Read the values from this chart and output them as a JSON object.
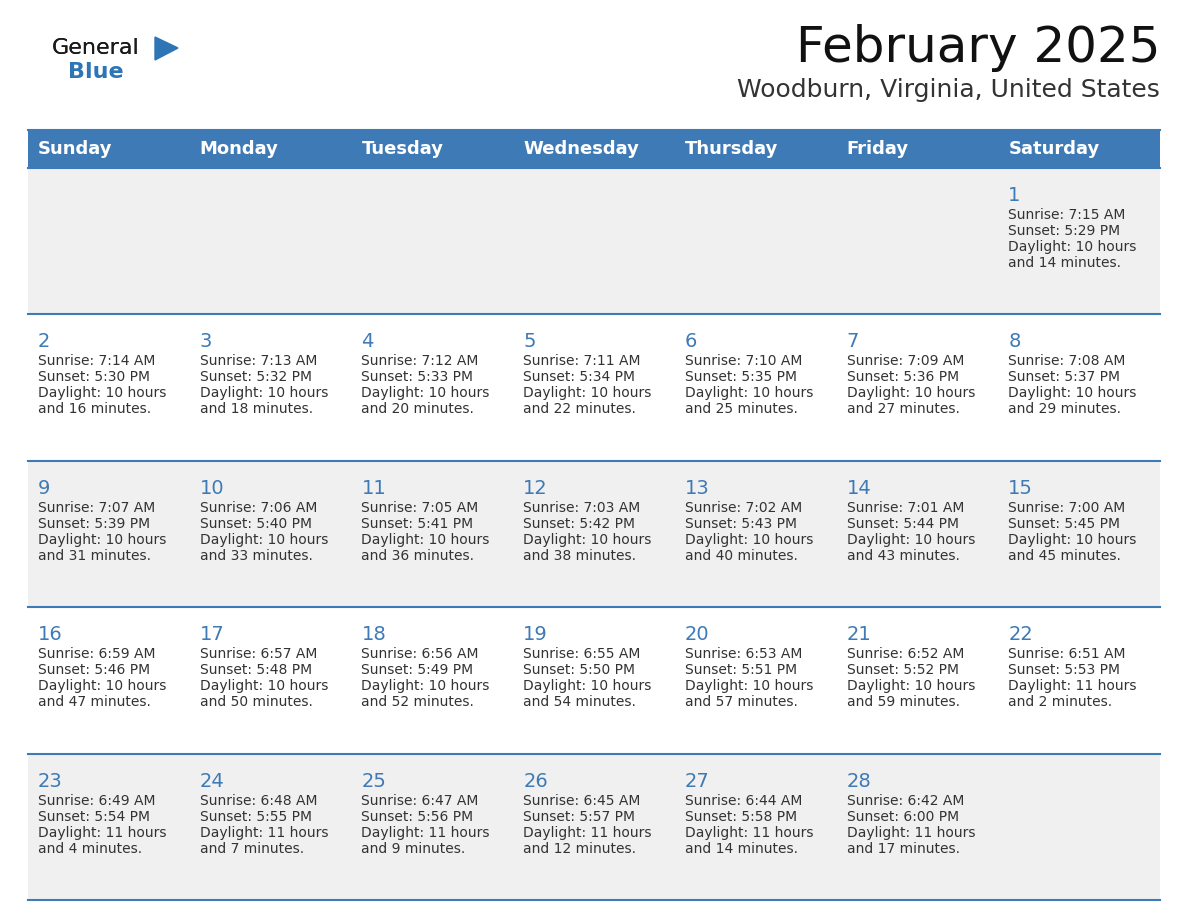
{
  "title": "February 2025",
  "subtitle": "Woodburn, Virginia, United States",
  "header_bg_color": "#3E7AB5",
  "header_text_color": "#FFFFFF",
  "cell_bg_color_odd": "#F0F0F0",
  "cell_bg_color_even": "#FFFFFF",
  "day_headers": [
    "Sunday",
    "Monday",
    "Tuesday",
    "Wednesday",
    "Thursday",
    "Friday",
    "Saturday"
  ],
  "days": [
    {
      "day": 1,
      "col": 6,
      "row": 0,
      "sunrise": "7:15 AM",
      "sunset": "5:29 PM",
      "daylight_hours": 10,
      "daylight_minutes": 14
    },
    {
      "day": 2,
      "col": 0,
      "row": 1,
      "sunrise": "7:14 AM",
      "sunset": "5:30 PM",
      "daylight_hours": 10,
      "daylight_minutes": 16
    },
    {
      "day": 3,
      "col": 1,
      "row": 1,
      "sunrise": "7:13 AM",
      "sunset": "5:32 PM",
      "daylight_hours": 10,
      "daylight_minutes": 18
    },
    {
      "day": 4,
      "col": 2,
      "row": 1,
      "sunrise": "7:12 AM",
      "sunset": "5:33 PM",
      "daylight_hours": 10,
      "daylight_minutes": 20
    },
    {
      "day": 5,
      "col": 3,
      "row": 1,
      "sunrise": "7:11 AM",
      "sunset": "5:34 PM",
      "daylight_hours": 10,
      "daylight_minutes": 22
    },
    {
      "day": 6,
      "col": 4,
      "row": 1,
      "sunrise": "7:10 AM",
      "sunset": "5:35 PM",
      "daylight_hours": 10,
      "daylight_minutes": 25
    },
    {
      "day": 7,
      "col": 5,
      "row": 1,
      "sunrise": "7:09 AM",
      "sunset": "5:36 PM",
      "daylight_hours": 10,
      "daylight_minutes": 27
    },
    {
      "day": 8,
      "col": 6,
      "row": 1,
      "sunrise": "7:08 AM",
      "sunset": "5:37 PM",
      "daylight_hours": 10,
      "daylight_minutes": 29
    },
    {
      "day": 9,
      "col": 0,
      "row": 2,
      "sunrise": "7:07 AM",
      "sunset": "5:39 PM",
      "daylight_hours": 10,
      "daylight_minutes": 31
    },
    {
      "day": 10,
      "col": 1,
      "row": 2,
      "sunrise": "7:06 AM",
      "sunset": "5:40 PM",
      "daylight_hours": 10,
      "daylight_minutes": 33
    },
    {
      "day": 11,
      "col": 2,
      "row": 2,
      "sunrise": "7:05 AM",
      "sunset": "5:41 PM",
      "daylight_hours": 10,
      "daylight_minutes": 36
    },
    {
      "day": 12,
      "col": 3,
      "row": 2,
      "sunrise": "7:03 AM",
      "sunset": "5:42 PM",
      "daylight_hours": 10,
      "daylight_minutes": 38
    },
    {
      "day": 13,
      "col": 4,
      "row": 2,
      "sunrise": "7:02 AM",
      "sunset": "5:43 PM",
      "daylight_hours": 10,
      "daylight_minutes": 40
    },
    {
      "day": 14,
      "col": 5,
      "row": 2,
      "sunrise": "7:01 AM",
      "sunset": "5:44 PM",
      "daylight_hours": 10,
      "daylight_minutes": 43
    },
    {
      "day": 15,
      "col": 6,
      "row": 2,
      "sunrise": "7:00 AM",
      "sunset": "5:45 PM",
      "daylight_hours": 10,
      "daylight_minutes": 45
    },
    {
      "day": 16,
      "col": 0,
      "row": 3,
      "sunrise": "6:59 AM",
      "sunset": "5:46 PM",
      "daylight_hours": 10,
      "daylight_minutes": 47
    },
    {
      "day": 17,
      "col": 1,
      "row": 3,
      "sunrise": "6:57 AM",
      "sunset": "5:48 PM",
      "daylight_hours": 10,
      "daylight_minutes": 50
    },
    {
      "day": 18,
      "col": 2,
      "row": 3,
      "sunrise": "6:56 AM",
      "sunset": "5:49 PM",
      "daylight_hours": 10,
      "daylight_minutes": 52
    },
    {
      "day": 19,
      "col": 3,
      "row": 3,
      "sunrise": "6:55 AM",
      "sunset": "5:50 PM",
      "daylight_hours": 10,
      "daylight_minutes": 54
    },
    {
      "day": 20,
      "col": 4,
      "row": 3,
      "sunrise": "6:53 AM",
      "sunset": "5:51 PM",
      "daylight_hours": 10,
      "daylight_minutes": 57
    },
    {
      "day": 21,
      "col": 5,
      "row": 3,
      "sunrise": "6:52 AM",
      "sunset": "5:52 PM",
      "daylight_hours": 10,
      "daylight_minutes": 59
    },
    {
      "day": 22,
      "col": 6,
      "row": 3,
      "sunrise": "6:51 AM",
      "sunset": "5:53 PM",
      "daylight_hours": 11,
      "daylight_minutes": 2
    },
    {
      "day": 23,
      "col": 0,
      "row": 4,
      "sunrise": "6:49 AM",
      "sunset": "5:54 PM",
      "daylight_hours": 11,
      "daylight_minutes": 4
    },
    {
      "day": 24,
      "col": 1,
      "row": 4,
      "sunrise": "6:48 AM",
      "sunset": "5:55 PM",
      "daylight_hours": 11,
      "daylight_minutes": 7
    },
    {
      "day": 25,
      "col": 2,
      "row": 4,
      "sunrise": "6:47 AM",
      "sunset": "5:56 PM",
      "daylight_hours": 11,
      "daylight_minutes": 9
    },
    {
      "day": 26,
      "col": 3,
      "row": 4,
      "sunrise": "6:45 AM",
      "sunset": "5:57 PM",
      "daylight_hours": 11,
      "daylight_minutes": 12
    },
    {
      "day": 27,
      "col": 4,
      "row": 4,
      "sunrise": "6:44 AM",
      "sunset": "5:58 PM",
      "daylight_hours": 11,
      "daylight_minutes": 14
    },
    {
      "day": 28,
      "col": 5,
      "row": 4,
      "sunrise": "6:42 AM",
      "sunset": "6:00 PM",
      "daylight_hours": 11,
      "daylight_minutes": 17
    }
  ],
  "logo_color_general": "#1a1a1a",
  "logo_color_blue": "#2E75B6",
  "logo_triangle_color": "#2E75B6",
  "divider_color": "#3E7AB5",
  "day_number_color": "#3E7AB5",
  "cell_text_color": "#333333",
  "num_rows": 5,
  "title_fontsize": 36,
  "subtitle_fontsize": 18,
  "header_fontsize": 13,
  "day_num_fontsize": 14,
  "cell_fontsize": 10
}
